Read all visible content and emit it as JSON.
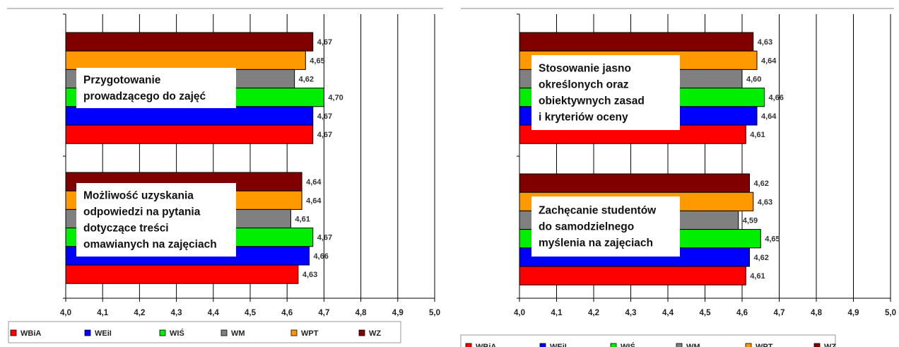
{
  "colors": {
    "WBiA": "#ff0000",
    "WEiI": "#0000ff",
    "WIŚ": "#00ee00",
    "WM": "#808080",
    "WPT": "#ff9900",
    "WZ": "#800000"
  },
  "chart_data": [
    {
      "type": "bar",
      "orientation": "horizontal",
      "xlim": [
        4.0,
        5.0
      ],
      "tick_labels": [
        "4,0",
        "4,1",
        "4,2",
        "4,3",
        "4,4",
        "4,5",
        "4,6",
        "4,7",
        "4,8",
        "4,9",
        "5,0"
      ],
      "legend": [
        "WBiA",
        "WEiI",
        "WIŚ",
        "WM",
        "WPT",
        "WZ"
      ],
      "legend_position": "bottom",
      "grid": true,
      "categories": [
        "Przygotowanie prowadzącego do zajęć",
        "Możliwość uzyskania odpowiedzi na pytania dotyczące treści omawianych na zajęciach"
      ],
      "category_lines": [
        [
          "Przygotowanie",
          "prowadzącego do zajęć"
        ],
        [
          "Możliwość uzyskania",
          "odpowiedzi na pytania",
          "dotyczące treści",
          "omawianych na zajęciach"
        ]
      ],
      "series": [
        {
          "name": "WBiA",
          "values": [
            4.67,
            4.63
          ],
          "labels": [
            "4,67",
            "4,63"
          ]
        },
        {
          "name": "WEiI",
          "values": [
            4.67,
            4.66
          ],
          "labels": [
            "4,67",
            "4,66"
          ]
        },
        {
          "name": "WIŚ",
          "values": [
            4.7,
            4.67
          ],
          "labels": [
            "4,70",
            "4,67"
          ]
        },
        {
          "name": "WM",
          "values": [
            4.62,
            4.61
          ],
          "labels": [
            "4,62",
            "4,61"
          ]
        },
        {
          "name": "WPT",
          "values": [
            4.65,
            4.64
          ],
          "labels": [
            "4,65",
            "4,64"
          ]
        },
        {
          "name": "WZ",
          "values": [
            4.67,
            4.64
          ],
          "labels": [
            "4,67",
            "4,64"
          ]
        }
      ]
    },
    {
      "type": "bar",
      "orientation": "horizontal",
      "xlim": [
        4.0,
        5.0
      ],
      "tick_labels": [
        "4,0",
        "4,1",
        "4,2",
        "4,3",
        "4,4",
        "4,5",
        "4,6",
        "4,7",
        "4,8",
        "4,9",
        "5,0"
      ],
      "legend": [
        "WBiA",
        "WEiI",
        "WIŚ",
        "WM",
        "WPT",
        "WZ"
      ],
      "legend_position": "bottom",
      "grid": true,
      "categories": [
        "Stosowanie jasno określonych oraz obiektywnych zasad i kryteriów oceny",
        "Zachęcanie studentów do samodzielnego myślenia na zajęciach"
      ],
      "category_lines": [
        [
          "Stosowanie jasno",
          "określonych oraz",
          "obiektywnych zasad",
          "i kryteriów oceny"
        ],
        [
          "Zachęcanie studentów",
          "do samodzielnego",
          "myślenia na zajęciach"
        ]
      ],
      "series": [
        {
          "name": "WBiA",
          "values": [
            4.61,
            4.61
          ],
          "labels": [
            "4,61",
            "4,61"
          ]
        },
        {
          "name": "WEiI",
          "values": [
            4.64,
            4.62
          ],
          "labels": [
            "4,64",
            "4,62"
          ]
        },
        {
          "name": "WIŚ",
          "values": [
            4.66,
            4.65
          ],
          "labels": [
            "4,66",
            "4,65"
          ]
        },
        {
          "name": "WM",
          "values": [
            4.6,
            4.59
          ],
          "labels": [
            "4,60",
            "4,59"
          ]
        },
        {
          "name": "WPT",
          "values": [
            4.64,
            4.63
          ],
          "labels": [
            "4,64",
            "4,63"
          ]
        },
        {
          "name": "WZ",
          "values": [
            4.63,
            4.62
          ],
          "labels": [
            "4,63",
            "4,62"
          ]
        }
      ]
    }
  ]
}
